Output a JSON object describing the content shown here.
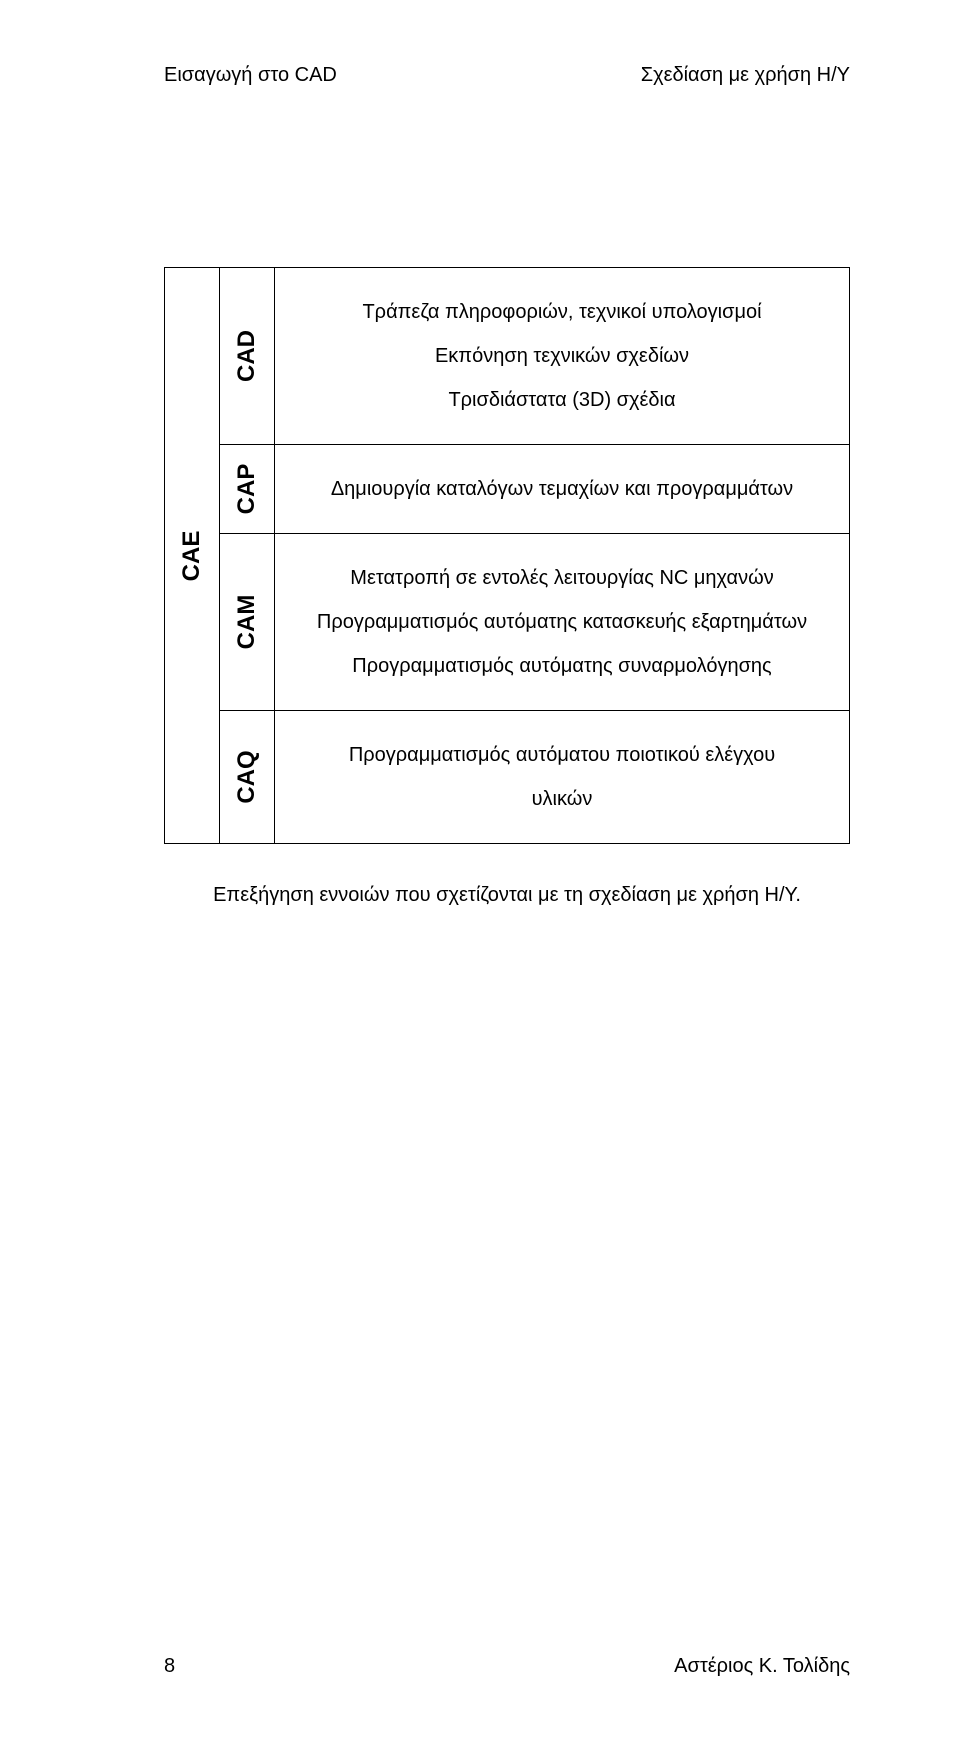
{
  "header": {
    "left": "Εισαγωγή στο CAD",
    "right": "Σχεδίαση με χρήση Η/Υ"
  },
  "table": {
    "outer_label": "CAE",
    "rows": [
      {
        "label": "CAD",
        "lines": [
          "Τράπεζα πληροφοριών, τεχνικοί υπολογισμοί",
          "Εκπόνηση τεχνικών σχεδίων",
          "Τρισδιάστατα (3D) σχέδια"
        ]
      },
      {
        "label": "CAP",
        "lines": [
          "Δημιουργία καταλόγων τεμαχίων και προγραμμάτων"
        ]
      },
      {
        "label": "CAM",
        "lines": [
          "Μετατροπή σε εντολές λειτουργίας NC μηχανών",
          "Προγραμματισμός αυτόματης κατασκευής εξαρτημάτων",
          "Προγραμματισμός αυτόματης συναρμολόγησης"
        ]
      },
      {
        "label": "CAQ",
        "lines": [
          "Προγραμματισμός αυτόματου ποιοτικού ελέγχου",
          "υλικών"
        ]
      }
    ]
  },
  "caption": "Επεξήγηση εννοιών που σχετίζονται με τη σχεδίαση με χρήση Η/Υ.",
  "footer": {
    "page_number": "8",
    "author": "Αστέριος Κ. Τολίδης"
  }
}
